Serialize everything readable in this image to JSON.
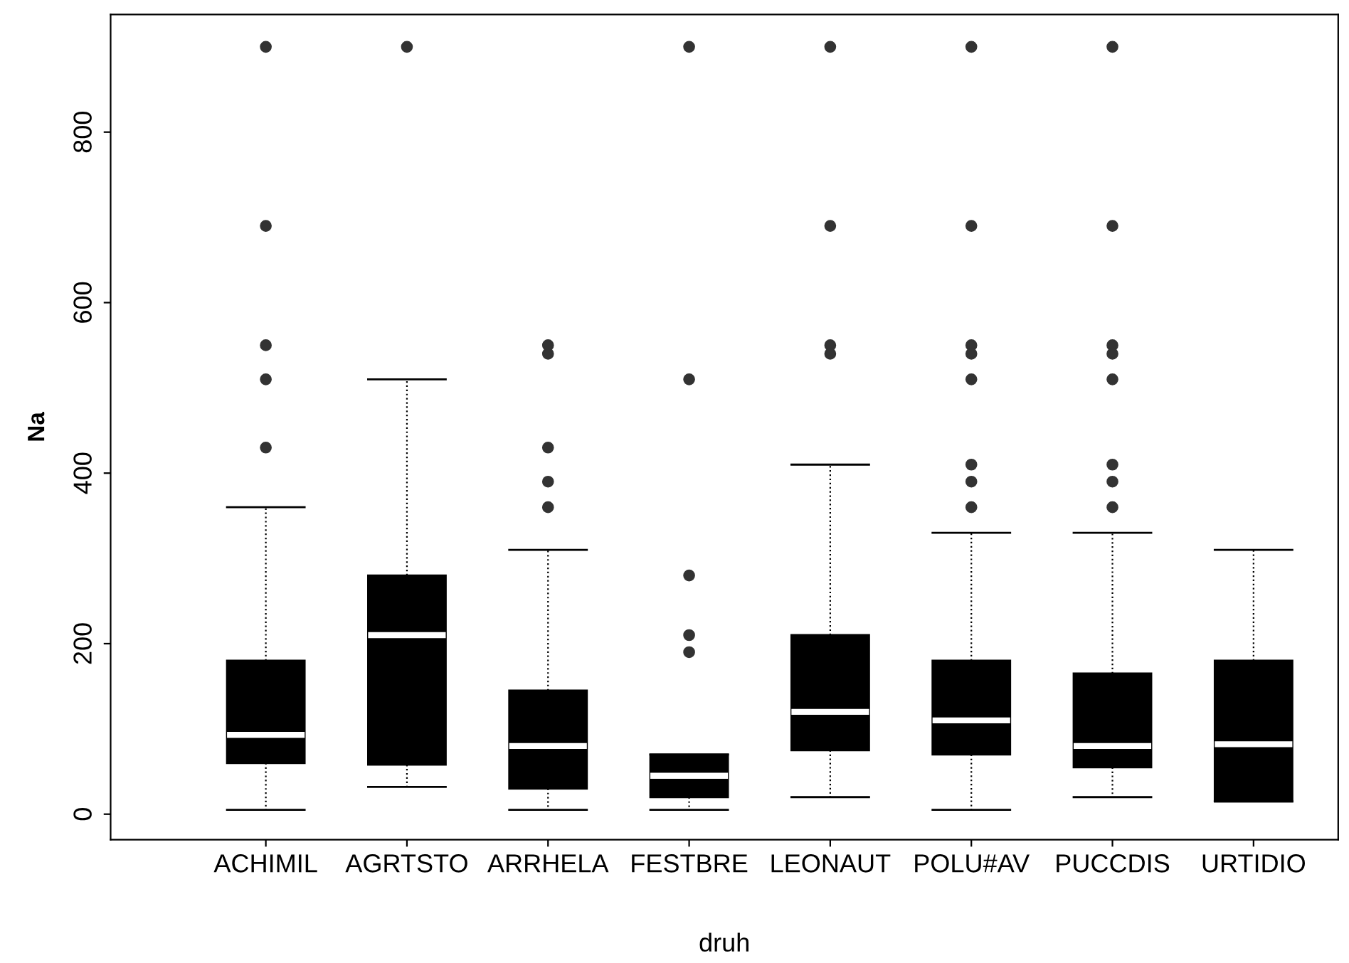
{
  "chart_data": {
    "type": "box",
    "xlabel": "druh",
    "ylabel": "Na",
    "categories": [
      "ACHIMIL",
      "AGRTSTO",
      "ARRHELA",
      "FESTBRE",
      "LEONAUT",
      "POLU#AV",
      "PUCCDIS",
      "URTIDIO"
    ],
    "boxes": [
      {
        "low": 5,
        "q1": 60,
        "median": 93,
        "q3": 180,
        "high": 360,
        "outliers": [
          430,
          510,
          550,
          690,
          900
        ]
      },
      {
        "low": 32,
        "q1": 58,
        "median": 210,
        "q3": 280,
        "high": 510,
        "outliers": [
          900
        ]
      },
      {
        "low": 5,
        "q1": 30,
        "median": 80,
        "q3": 145,
        "high": 310,
        "outliers": [
          360,
          390,
          430,
          540,
          550
        ]
      },
      {
        "low": 5,
        "q1": 20,
        "median": 45,
        "q3": 70,
        "high": 70,
        "outliers": [
          190,
          210,
          280,
          510,
          900
        ]
      },
      {
        "low": 20,
        "q1": 75,
        "median": 120,
        "q3": 210,
        "high": 410,
        "outliers": [
          540,
          550,
          690,
          900
        ]
      },
      {
        "low": 5,
        "q1": 70,
        "median": 110,
        "q3": 180,
        "high": 330,
        "outliers": [
          360,
          390,
          410,
          510,
          540,
          550,
          690,
          900
        ]
      },
      {
        "low": 20,
        "q1": 55,
        "median": 80,
        "q3": 165,
        "high": 330,
        "outliers": [
          360,
          390,
          410,
          510,
          540,
          550,
          690,
          900
        ]
      },
      {
        "low": 15,
        "q1": 15,
        "median": 82,
        "q3": 180,
        "high": 310
      }
    ],
    "color": "#000000",
    "ylim": [
      -30,
      938
    ],
    "yticks": [
      0,
      200,
      400,
      600,
      800
    ],
    "grid": false
  }
}
